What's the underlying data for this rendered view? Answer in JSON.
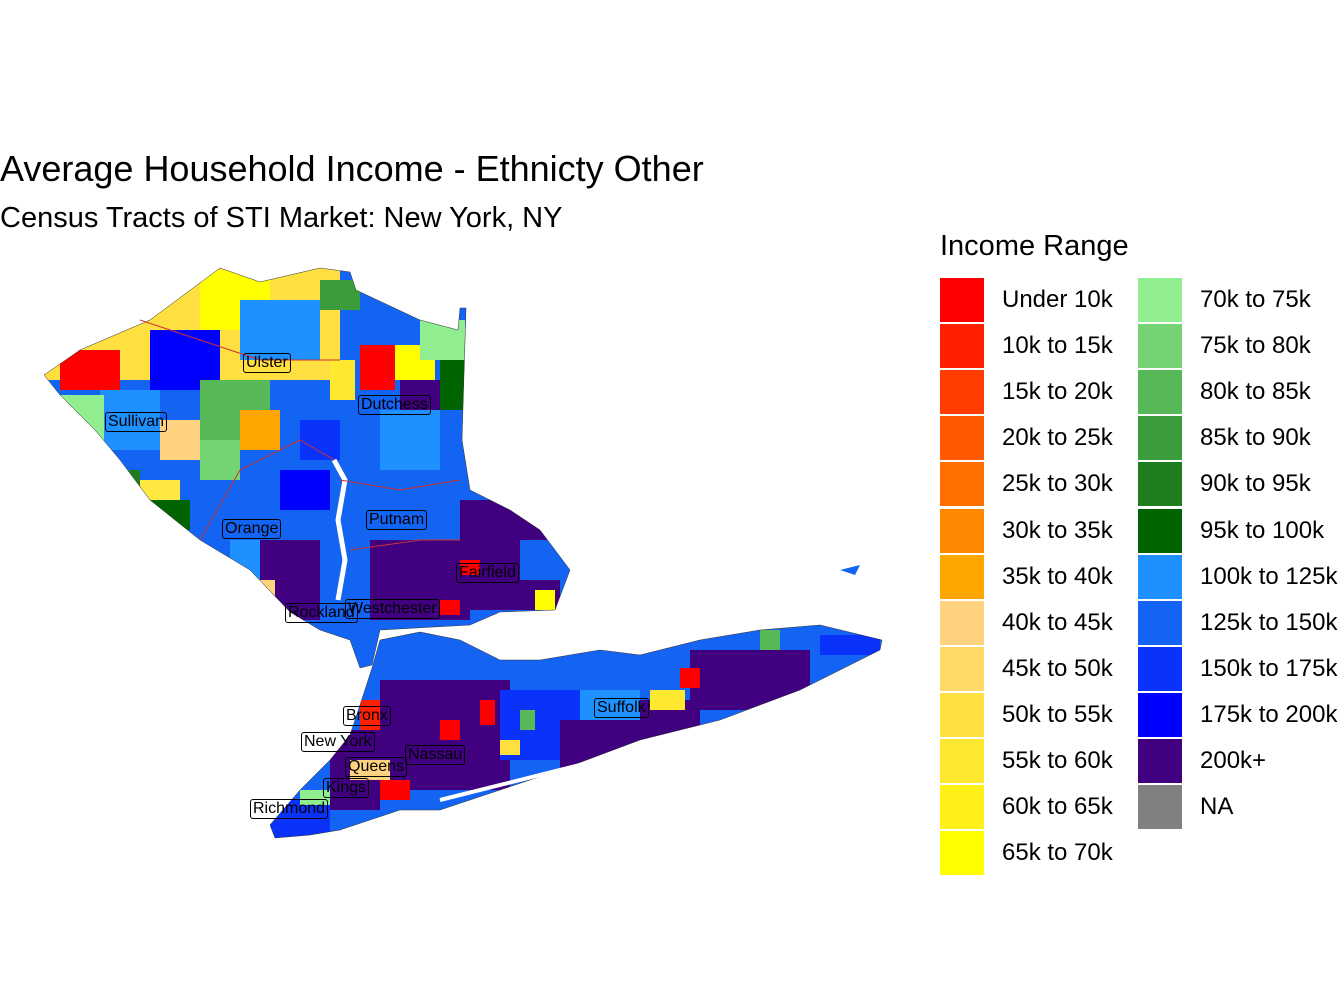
{
  "title": "Average Household Income - Ethnicty Other",
  "subtitle": "Census Tracts of STI Market: New York, NY",
  "legend": {
    "title": "Income Range",
    "items": [
      {
        "label": "Under 10k",
        "color": "#ff0000"
      },
      {
        "label": "10k to 15k",
        "color": "#ff2000"
      },
      {
        "label": "15k to 20k",
        "color": "#ff3d00"
      },
      {
        "label": "20k to 25k",
        "color": "#ff5800"
      },
      {
        "label": "25k to 30k",
        "color": "#ff7000"
      },
      {
        "label": "30k to 35k",
        "color": "#ff8800"
      },
      {
        "label": "35k to 40k",
        "color": "#ffa500"
      },
      {
        "label": "40k to 45k",
        "color": "#ffd280"
      },
      {
        "label": "45k to 50k",
        "color": "#ffd966"
      },
      {
        "label": "50k to 55k",
        "color": "#ffe040"
      },
      {
        "label": "55k to 60k",
        "color": "#ffe830"
      },
      {
        "label": "60k to 65k",
        "color": "#fff018"
      },
      {
        "label": "65k to 70k",
        "color": "#ffff00"
      },
      {
        "label": "70k to 75k",
        "color": "#90ee90"
      },
      {
        "label": "75k to 80k",
        "color": "#74d474"
      },
      {
        "label": "80k to 85k",
        "color": "#57b857"
      },
      {
        "label": "85k to 90k",
        "color": "#3a9c3a"
      },
      {
        "label": "90k to 95k",
        "color": "#1e7e1e"
      },
      {
        "label": "95k to 100k",
        "color": "#006400"
      },
      {
        "label": "100k to 125k",
        "color": "#1e90ff"
      },
      {
        "label": "125k to 150k",
        "color": "#1464f4"
      },
      {
        "label": "150k to 175k",
        "color": "#0a32fa"
      },
      {
        "label": "175k to 200k",
        "color": "#0000ff"
      },
      {
        "label": "200k+",
        "color": "#400080"
      },
      {
        "label": "NA",
        "color": "#808080"
      }
    ]
  },
  "counties": [
    "Ulster",
    "Dutchess",
    "Sullivan",
    "Orange",
    "Putnam",
    "Fairfield",
    "Rockland",
    "Westchester",
    "Suffolk",
    "Bronx",
    "New York",
    "Nassau",
    "Queens",
    "Kings",
    "Richmond"
  ]
}
